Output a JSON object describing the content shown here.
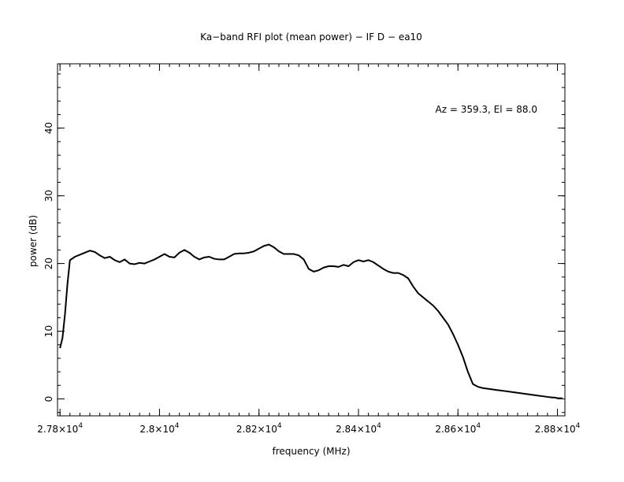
{
  "chart_data": {
    "type": "line",
    "title": "Ka−band RFI plot (mean power) − IF D − ea10",
    "xlabel": "frequency (MHz)",
    "ylabel": "power (dB)",
    "annotation": "Az = 359.3, El = 88.0",
    "xlim": [
      27795,
      28815
    ],
    "ylim": [
      -2.5,
      49.5
    ],
    "x_ticks": [
      {
        "value": 27800,
        "mantissa": "2.78",
        "exponent": "4"
      },
      {
        "value": 28000,
        "mantissa": "2.8",
        "exponent": "4"
      },
      {
        "value": 28200,
        "mantissa": "2.82",
        "exponent": "4"
      },
      {
        "value": 28400,
        "mantissa": "2.84",
        "exponent": "4"
      },
      {
        "value": 28600,
        "mantissa": "2.86",
        "exponent": "4"
      },
      {
        "value": 28800,
        "mantissa": "2.88",
        "exponent": "4"
      }
    ],
    "x_minor_step": 20,
    "y_ticks": [
      0,
      10,
      20,
      30,
      40
    ],
    "y_minor_step": 2,
    "grid": false,
    "line_color": "#000000",
    "series": [
      {
        "x": [
          27800,
          27805,
          27810,
          27815,
          27820,
          27830,
          27840,
          27850,
          27860,
          27870,
          27880,
          27890,
          27900,
          27910,
          27920,
          27930,
          27940,
          27950,
          27960,
          27970,
          27980,
          27990,
          28000,
          28010,
          28020,
          28030,
          28040,
          28050,
          28060,
          28070,
          28080,
          28090,
          28100,
          28110,
          28120,
          28130,
          28140,
          28150,
          28160,
          28170,
          28180,
          28190,
          28200,
          28210,
          28220,
          28230,
          28240,
          28250,
          28260,
          28270,
          28280,
          28290,
          28300,
          28310,
          28320,
          28330,
          28340,
          28350,
          28360,
          28370,
          28380,
          28390,
          28400,
          28410,
          28420,
          28430,
          28440,
          28450,
          28460,
          28470,
          28480,
          28490,
          28500,
          28510,
          28520,
          28530,
          28540,
          28550,
          28560,
          28570,
          28580,
          28590,
          28600,
          28610,
          28620,
          28630,
          28640,
          28650,
          28660,
          28670,
          28680,
          28690,
          28700,
          28710,
          28720,
          28730,
          28740,
          28750,
          28760,
          28770,
          28780,
          28790,
          28795,
          28800,
          28805,
          28810
        ],
        "y": [
          7.5,
          9.0,
          12.5,
          17.0,
          20.5,
          21.0,
          21.3,
          21.6,
          21.9,
          21.7,
          21.2,
          20.8,
          21.0,
          20.5,
          20.2,
          20.6,
          20.0,
          19.9,
          20.1,
          20.0,
          20.3,
          20.6,
          21.0,
          21.4,
          21.0,
          20.9,
          21.6,
          22.0,
          21.6,
          21.0,
          20.6,
          20.9,
          21.0,
          20.7,
          20.6,
          20.6,
          21.0,
          21.4,
          21.5,
          21.5,
          21.6,
          21.8,
          22.2,
          22.6,
          22.8,
          22.4,
          21.8,
          21.4,
          21.4,
          21.4,
          21.2,
          20.6,
          19.2,
          18.8,
          19.0,
          19.4,
          19.6,
          19.6,
          19.5,
          19.8,
          19.6,
          20.2,
          20.5,
          20.3,
          20.5,
          20.2,
          19.7,
          19.2,
          18.8,
          18.6,
          18.6,
          18.3,
          17.8,
          16.6,
          15.6,
          15.0,
          14.4,
          13.8,
          13.0,
          12.0,
          11.0,
          9.6,
          8.0,
          6.2,
          4.0,
          2.2,
          1.8,
          1.6,
          1.5,
          1.4,
          1.3,
          1.2,
          1.1,
          1.0,
          0.9,
          0.8,
          0.7,
          0.6,
          0.5,
          0.4,
          0.3,
          0.2,
          0.2,
          0.1,
          0.1,
          0.1
        ]
      }
    ]
  }
}
